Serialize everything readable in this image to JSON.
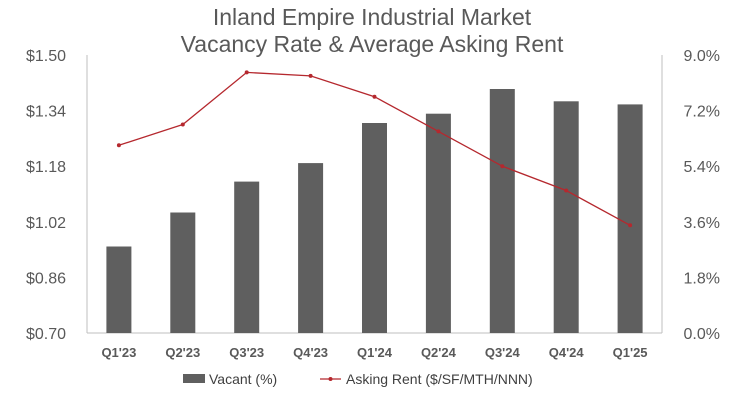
{
  "chart_data": {
    "type": "bar",
    "title_lines": [
      "Inland Empire Industrial Market",
      "Vacancy Rate & Average Asking Rent"
    ],
    "categories": [
      "Q1'23",
      "Q2'23",
      "Q3'23",
      "Q4'23",
      "Q1'24",
      "Q2'24",
      "Q3'24",
      "Q4'24",
      "Q1'25"
    ],
    "series": [
      {
        "name": "Vacant (%)",
        "type": "bar",
        "axis": "right",
        "color": "#5f5f5f",
        "values": [
          2.8,
          3.9,
          4.9,
          5.5,
          6.8,
          7.1,
          7.9,
          7.5,
          7.4
        ]
      },
      {
        "name": "Asking Rent ($/SF/MTH/NNN)",
        "type": "line",
        "axis": "left",
        "color": "#b5282e",
        "values": [
          1.24,
          1.3,
          1.45,
          1.44,
          1.38,
          1.28,
          1.18,
          1.11,
          1.01
        ]
      }
    ],
    "y_left": {
      "min": 0.7,
      "max": 1.5,
      "ticks": [
        "$1.50",
        "$1.34",
        "$1.18",
        "$1.02",
        "$0.86",
        "$0.70"
      ]
    },
    "y_right": {
      "min": 0,
      "max": 9,
      "ticks": [
        "9.0%",
        "7.2%",
        "5.4%",
        "3.6%",
        "1.8%",
        "0.0%"
      ]
    },
    "grid": false,
    "legend_position": "bottom"
  }
}
